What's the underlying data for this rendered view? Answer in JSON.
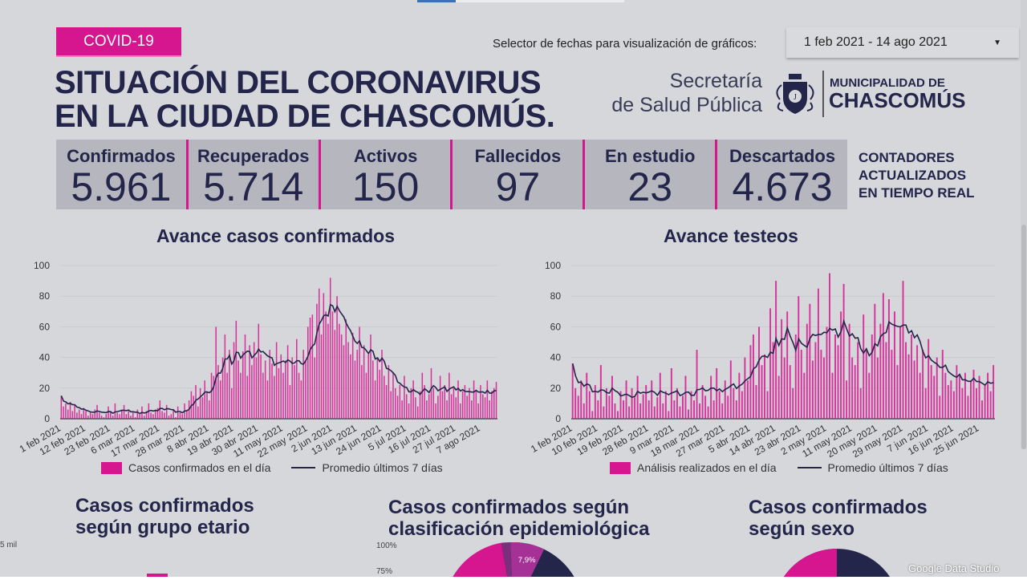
{
  "header": {
    "badge": "COVID-19",
    "date_selector_label": "Selector de fechas para visualización de gráficos:",
    "date_range": "1 feb 2021 - 14 ago 2021",
    "title_line1": "SITUACIÓN DEL CORONAVIRUS",
    "title_line2": "EN LA CIUDAD DE CHASCOMÚS.",
    "secretaria_line1": "Secretaría",
    "secretaria_line2": "de Salud Pública",
    "muni_line1": "MUNICIPALIDAD DE",
    "muni_line2": "CHASCOMÚS"
  },
  "counters": [
    {
      "label": "Confirmados",
      "value": "5.961"
    },
    {
      "label": "Recuperados",
      "value": "5.714"
    },
    {
      "label": "Activos",
      "value": "150"
    },
    {
      "label": "Fallecidos",
      "value": "97"
    },
    {
      "label": "En estudio",
      "value": "23"
    },
    {
      "label": "Descartados",
      "value": "4.673"
    }
  ],
  "counters_note": [
    "CONTADORES",
    "ACTUALIZADOS",
    "EN TIEMPO REAL"
  ],
  "colors": {
    "accent": "#d6168f",
    "navy": "#23254a",
    "background": "#d6d7db"
  },
  "chart_data": [
    {
      "type": "bar",
      "title": "Avance casos confirmados",
      "start_date": "1 feb 2021",
      "ylim": [
        0,
        100
      ],
      "yticks": [
        0,
        20,
        40,
        60,
        80,
        100
      ],
      "xtick_labels": [
        "1 feb 2021",
        "12 feb 2021",
        "23 feb 2021",
        "6 mar 2021",
        "17 mar 2021",
        "28 mar 2021",
        "8 abr 2021",
        "19 abr 2021",
        "30 abr 2021",
        "11 may 2021",
        "22 may 2021",
        "2 jun 2021",
        "13 jun 2021",
        "24 jun 2021",
        "5 jul 2021",
        "16 jul 2021",
        "27 jul 2021",
        "7 ago 2021"
      ],
      "xtick_every_days": 11,
      "series": [
        {
          "name": "Casos confirmados en el día",
          "kind": "bar",
          "color": "#d6168f",
          "values": [
            15,
            8,
            10,
            6,
            11,
            5,
            9,
            4,
            6,
            3,
            7,
            5,
            2,
            4,
            3,
            6,
            9,
            4,
            2,
            1,
            3,
            8,
            5,
            2,
            10,
            4,
            3,
            6,
            9,
            3,
            5,
            2,
            4,
            1,
            6,
            3,
            8,
            2,
            5,
            10,
            4,
            3,
            6,
            7,
            12,
            5,
            4,
            9,
            2,
            3,
            6,
            1,
            8,
            4,
            3,
            10,
            5,
            12,
            18,
            15,
            22,
            8,
            20,
            14,
            25,
            18,
            12,
            30,
            28,
            60,
            35,
            25,
            40,
            55,
            30,
            45,
            20,
            50,
            64,
            38,
            30,
            44,
            55,
            28,
            48,
            35,
            50,
            40,
            62,
            42,
            30,
            38,
            25,
            45,
            36,
            28,
            50,
            33,
            42,
            30,
            38,
            48,
            22,
            40,
            35,
            52,
            30,
            25,
            45,
            38,
            60,
            66,
            68,
            40,
            75,
            85,
            55,
            82,
            70,
            62,
            92,
            70,
            58,
            80,
            62,
            55,
            48,
            65,
            50,
            42,
            56,
            38,
            45,
            60,
            35,
            48,
            30,
            42,
            55,
            38,
            25,
            40,
            32,
            45,
            28,
            22,
            35,
            18,
            30,
            20,
            15,
            22,
            12,
            28,
            16,
            10,
            20,
            25,
            14,
            8,
            18,
            30,
            22,
            12,
            16,
            33,
            20,
            10,
            15,
            28,
            18,
            22,
            12,
            30,
            16,
            20,
            14,
            25,
            10,
            18,
            22,
            15,
            20,
            12,
            25,
            18,
            10,
            22,
            16,
            14,
            25,
            12,
            18,
            20,
            24
          ]
        },
        {
          "name": "Promedio últimos 7 días",
          "kind": "line",
          "color": "#23254a",
          "moving_average_of": 0,
          "window": 7
        }
      ]
    },
    {
      "type": "bar",
      "title": "Avance testeos",
      "start_date": "1 feb 2021",
      "ylim": [
        0,
        100
      ],
      "yticks": [
        0,
        20,
        40,
        60,
        80,
        100
      ],
      "xtick_labels": [
        "1 feb 2021",
        "10 feb 2021",
        "19 feb 2021",
        "28 feb 2021",
        "9 mar 2021",
        "18 mar 2021",
        "27 mar 2021",
        "5 abr 2021",
        "14 abr 2021",
        "23 abr 2021",
        "2 may 2021",
        "11 may 2021",
        "20 may 2021",
        "29 may 2021",
        "7 jun 2021",
        "16 jun 2021",
        "25 jun 2021"
      ],
      "xtick_every_days": 9,
      "series": [
        {
          "name": "Análisis realizados en el día",
          "kind": "bar",
          "color": "#d6168f",
          "values": [
            36,
            20,
            15,
            25,
            10,
            30,
            18,
            5,
            22,
            12,
            35,
            8,
            20,
            15,
            28,
            10,
            5,
            18,
            12,
            25,
            8,
            20,
            14,
            28,
            10,
            16,
            22,
            12,
            25,
            8,
            14,
            30,
            10,
            18,
            5,
            33,
            12,
            20,
            8,
            15,
            28,
            6,
            18,
            12,
            45,
            10,
            22,
            15,
            8,
            28,
            12,
            33,
            18,
            10,
            25,
            15,
            38,
            20,
            12,
            30,
            18,
            40,
            25,
            48,
            55,
            22,
            60,
            35,
            42,
            18,
            72,
            50,
            90,
            28,
            65,
            40,
            70,
            35,
            20,
            55,
            80,
            45,
            30,
            62,
            75,
            38,
            50,
            85,
            45,
            40,
            60,
            95,
            30,
            55,
            48,
            70,
            88,
            25,
            62,
            40,
            35,
            50,
            20,
            68,
            45,
            30,
            55,
            75,
            40,
            62,
            82,
            50,
            78,
            45,
            70,
            35,
            60,
            90,
            50,
            42,
            55,
            38,
            48,
            30,
            45,
            20,
            52,
            35,
            28,
            40,
            15,
            45,
            30,
            22,
            25,
            18,
            35,
            28,
            20,
            30,
            15,
            25,
            32,
            20,
            28,
            12,
            22,
            30,
            18,
            35
          ]
        },
        {
          "name": "Promedio últimos 7 días",
          "kind": "line",
          "color": "#23254a",
          "moving_average_of": 0,
          "window": 7
        }
      ]
    }
  ],
  "bottom": {
    "age_title": [
      "Casos confirmados",
      "según grupo etario"
    ],
    "age_axis_label": "5 mil",
    "epi_title": [
      "Casos confirmados según",
      "clasificación epidemiológica"
    ],
    "epi_axis_top": "100%",
    "epi_axis_next": "75%",
    "epi_slice_label": "7,9%",
    "sex_title": [
      "Casos confirmados",
      "según sexo"
    ]
  },
  "footer_badge": "Google Data Studio"
}
